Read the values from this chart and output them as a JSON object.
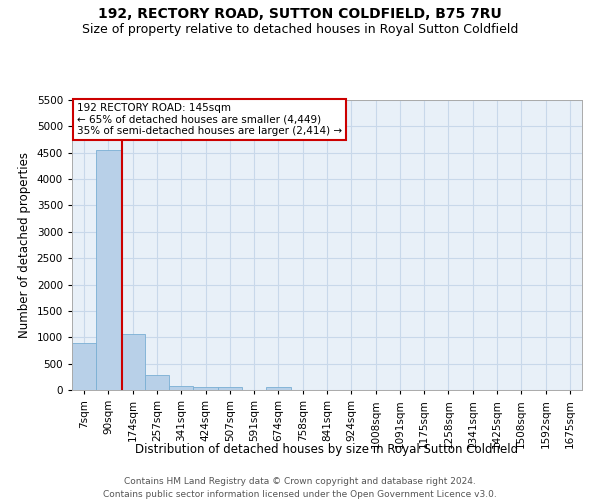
{
  "title": "192, RECTORY ROAD, SUTTON COLDFIELD, B75 7RU",
  "subtitle": "Size of property relative to detached houses in Royal Sutton Coldfield",
  "xlabel": "Distribution of detached houses by size in Royal Sutton Coldfield",
  "ylabel": "Number of detached properties",
  "footer_line1": "Contains HM Land Registry data © Crown copyright and database right 2024.",
  "footer_line2": "Contains public sector information licensed under the Open Government Licence v3.0.",
  "bin_labels": [
    "7sqm",
    "90sqm",
    "174sqm",
    "257sqm",
    "341sqm",
    "424sqm",
    "507sqm",
    "591sqm",
    "674sqm",
    "758sqm",
    "841sqm",
    "924sqm",
    "1008sqm",
    "1091sqm",
    "1175sqm",
    "1258sqm",
    "1341sqm",
    "1425sqm",
    "1508sqm",
    "1592sqm",
    "1675sqm"
  ],
  "bar_heights": [
    900,
    4550,
    1060,
    290,
    80,
    65,
    50,
    0,
    60,
    0,
    0,
    0,
    0,
    0,
    0,
    0,
    0,
    0,
    0,
    0,
    0
  ],
  "bar_color": "#b8d0e8",
  "bar_edge_color": "#7aafd4",
  "grid_color": "#c8d8ea",
  "bg_color": "#e8f0f8",
  "red_line_x": 1.55,
  "annotation_text_line1": "192 RECTORY ROAD: 145sqm",
  "annotation_text_line2": "← 65% of detached houses are smaller (4,449)",
  "annotation_text_line3": "35% of semi-detached houses are larger (2,414) →",
  "annotation_box_color": "#ffffff",
  "annotation_border_color": "#cc0000",
  "ylim": [
    0,
    5500
  ],
  "yticks": [
    0,
    500,
    1000,
    1500,
    2000,
    2500,
    3000,
    3500,
    4000,
    4500,
    5000,
    5500
  ],
  "title_fontsize": 10,
  "subtitle_fontsize": 9,
  "label_fontsize": 8.5,
  "tick_fontsize": 7.5,
  "footer_fontsize": 6.5
}
